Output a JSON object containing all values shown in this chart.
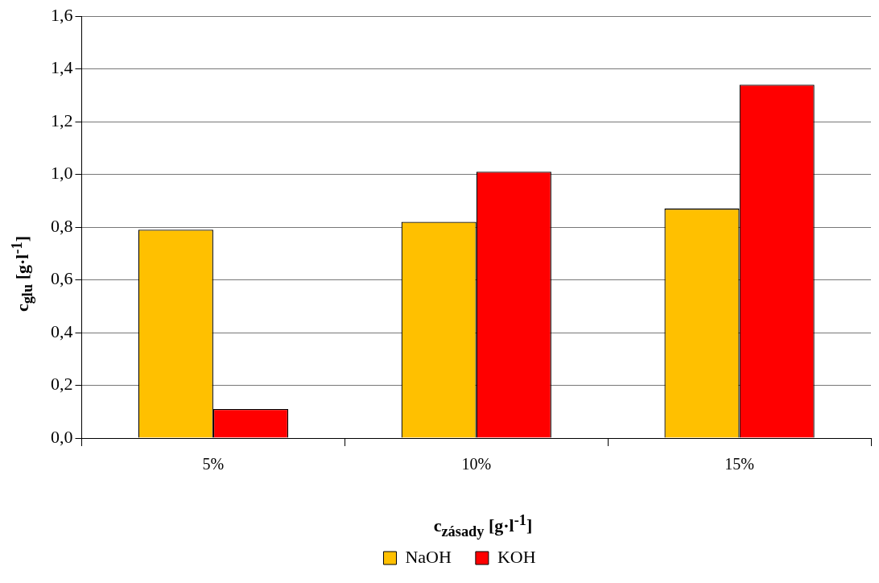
{
  "chart_data": {
    "type": "bar",
    "xlabel": "c$_{zásady}$ [g·l$^{-1}$]",
    "ylabel": "c$_{glu}$ [g·l$^{-1}$]",
    "categories": [
      "5%",
      "10%",
      "15%"
    ],
    "series": [
      {
        "name": "NaOH",
        "color": "#ffc000",
        "values": [
          0.79,
          0.82,
          0.87
        ]
      },
      {
        "name": "KOH",
        "color": "#ff0000",
        "values": [
          0.11,
          1.01,
          1.34
        ]
      }
    ],
    "ylim": [
      0,
      1.6
    ],
    "yticks": [
      {
        "value": 0,
        "label": "0,0"
      },
      {
        "value": 0.2,
        "label": "0,2"
      },
      {
        "value": 0.4,
        "label": "0,4"
      },
      {
        "value": 0.6,
        "label": "0,6"
      },
      {
        "value": 0.8,
        "label": "0,8"
      },
      {
        "value": 1,
        "label": "1,0"
      },
      {
        "value": 1.2,
        "label": "1,2"
      },
      {
        "value": 1.4,
        "label": "1,4"
      },
      {
        "value": 1.6,
        "label": "1,6"
      }
    ],
    "grid": "y",
    "legend": "bottom"
  }
}
